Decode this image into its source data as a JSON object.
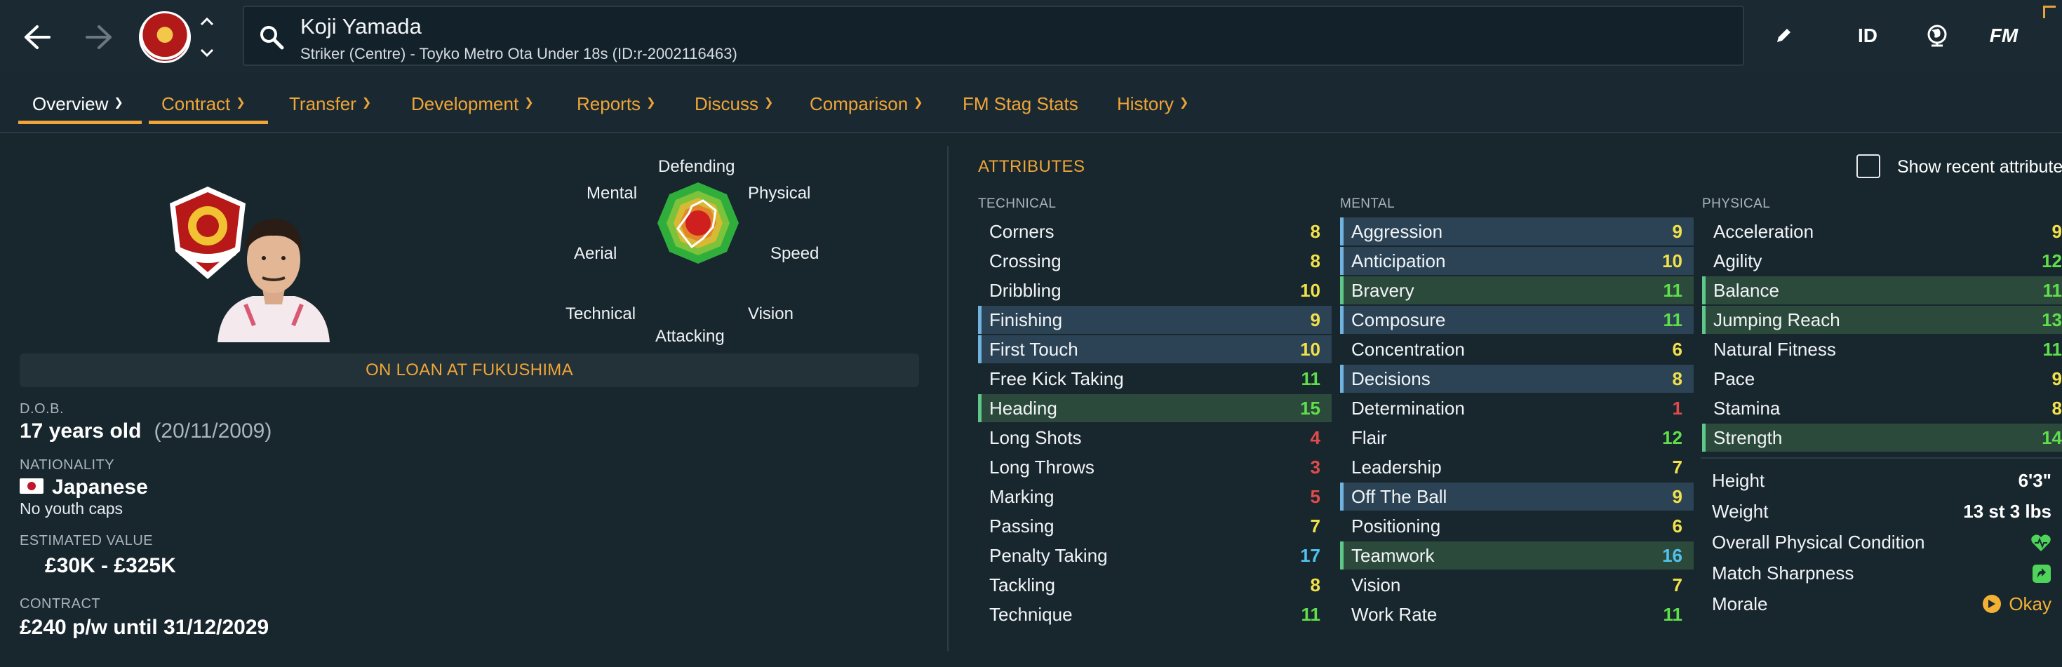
{
  "header": {
    "player_name": "Koji Yamada",
    "player_subtitle": "Striker (Centre) - Toyko Metro Ota Under 18s (ID:r-2002116463)",
    "id_button": "ID",
    "fm_button": "FM"
  },
  "tabs": [
    {
      "label": "Overview"
    },
    {
      "label": "Contract"
    },
    {
      "label": "Transfer"
    },
    {
      "label": "Development"
    },
    {
      "label": "Reports"
    },
    {
      "label": "Discuss"
    },
    {
      "label": "Comparison"
    },
    {
      "label": "FM Stag Stats"
    },
    {
      "label": "History"
    }
  ],
  "radar": {
    "labels": {
      "defending": "Defending",
      "physical": "Physical",
      "speed": "Speed",
      "vision": "Vision",
      "attacking": "Attacking",
      "technical": "Technical",
      "aerial": "Aerial",
      "mental": "Mental"
    }
  },
  "profile": {
    "loan_banner": "ON LOAN AT FUKUSHIMA",
    "dob_label": "D.O.B.",
    "dob_age": "17 years old",
    "dob_date": "(20/11/2009)",
    "nationality_label": "NATIONALITY",
    "nationality": "Japanese",
    "youth_caps": "No youth caps",
    "value_label": "ESTIMATED VALUE",
    "value": "£30K - £325K",
    "contract_label": "CONTRACT",
    "contract": "£240 p/w until 31/12/2029"
  },
  "attributes": {
    "title": "ATTRIBUTES",
    "show_recent_label": "Show recent attributes",
    "technical_header": "TECHNICAL",
    "mental_header": "MENTAL",
    "physical_header": "PHYSICAL",
    "technical": [
      {
        "name": "Corners",
        "value": "8",
        "hl": ""
      },
      {
        "name": "Crossing",
        "value": "8",
        "hl": ""
      },
      {
        "name": "Dribbling",
        "value": "10",
        "hl": ""
      },
      {
        "name": "Finishing",
        "value": "9",
        "hl": "blue"
      },
      {
        "name": "First Touch",
        "value": "10",
        "hl": "blue"
      },
      {
        "name": "Free Kick Taking",
        "value": "11",
        "hl": ""
      },
      {
        "name": "Heading",
        "value": "15",
        "hl": "green"
      },
      {
        "name": "Long Shots",
        "value": "4",
        "hl": ""
      },
      {
        "name": "Long Throws",
        "value": "3",
        "hl": ""
      },
      {
        "name": "Marking",
        "value": "5",
        "hl": ""
      },
      {
        "name": "Passing",
        "value": "7",
        "hl": ""
      },
      {
        "name": "Penalty Taking",
        "value": "17",
        "hl": ""
      },
      {
        "name": "Tackling",
        "value": "8",
        "hl": ""
      },
      {
        "name": "Technique",
        "value": "11",
        "hl": ""
      }
    ],
    "mental": [
      {
        "name": "Aggression",
        "value": "9",
        "hl": "blue"
      },
      {
        "name": "Anticipation",
        "value": "10",
        "hl": "blue"
      },
      {
        "name": "Bravery",
        "value": "11",
        "hl": "green"
      },
      {
        "name": "Composure",
        "value": "11",
        "hl": "blue"
      },
      {
        "name": "Concentration",
        "value": "6",
        "hl": ""
      },
      {
        "name": "Decisions",
        "value": "8",
        "hl": "blue"
      },
      {
        "name": "Determination",
        "value": "1",
        "hl": ""
      },
      {
        "name": "Flair",
        "value": "12",
        "hl": ""
      },
      {
        "name": "Leadership",
        "value": "7",
        "hl": ""
      },
      {
        "name": "Off The Ball",
        "value": "9",
        "hl": "blue"
      },
      {
        "name": "Positioning",
        "value": "6",
        "hl": ""
      },
      {
        "name": "Teamwork",
        "value": "16",
        "hl": "green"
      },
      {
        "name": "Vision",
        "value": "7",
        "hl": ""
      },
      {
        "name": "Work Rate",
        "value": "11",
        "hl": ""
      }
    ],
    "physical": [
      {
        "name": "Acceleration",
        "value": "9",
        "hl": ""
      },
      {
        "name": "Agility",
        "value": "12",
        "hl": ""
      },
      {
        "name": "Balance",
        "value": "11",
        "hl": "green"
      },
      {
        "name": "Jumping Reach",
        "value": "13",
        "hl": "green"
      },
      {
        "name": "Natural Fitness",
        "value": "11",
        "hl": ""
      },
      {
        "name": "Pace",
        "value": "9",
        "hl": ""
      },
      {
        "name": "Stamina",
        "value": "8",
        "hl": ""
      },
      {
        "name": "Strength",
        "value": "14",
        "hl": "green"
      }
    ]
  },
  "physical_info": {
    "height_label": "Height",
    "height": "6'3\"",
    "weight_label": "Weight",
    "weight": "13 st 3 lbs",
    "condition_label": "Overall Physical Condition",
    "sharpness_label": "Match Sharpness",
    "morale_label": "Morale",
    "morale": "Okay"
  },
  "colors": {
    "accent": "#efa538",
    "val_red": "#e24b4b",
    "val_yellow": "#f2e14a",
    "val_green": "#5fe04a",
    "val_cyan": "#4fc3f0"
  }
}
